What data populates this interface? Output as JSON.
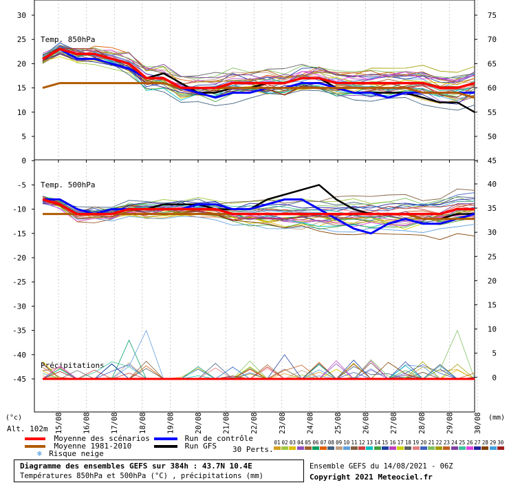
{
  "chart_data": {
    "type": "line",
    "title": "Diagramme des ensembles GEFS sur 384h : 43.7N 10.4E",
    "subtitle": "Températures 850hPa et 500hPa (°C) , précipitations (mm)",
    "left_unit": "(°c)",
    "right_unit": "(mm)",
    "altitude": "Alt. 102m",
    "left_ticks": [
      "30",
      "25",
      "20",
      "15",
      "10",
      "5",
      "0",
      "-5",
      "-10",
      "-15",
      "-20",
      "-25",
      "-30",
      "-35",
      "-40",
      "-45"
    ],
    "right_ticks_top": [
      "75",
      "70",
      "65",
      "60",
      "55",
      "50",
      "45"
    ],
    "right_ticks_bottom": [
      "40",
      "35",
      "30",
      "25",
      "20",
      "15",
      "10",
      "5",
      "0"
    ],
    "x_labels": [
      "15/08",
      "16/08",
      "17/08",
      "18/08",
      "19/08",
      "20/08",
      "21/08",
      "22/08",
      "23/08",
      "24/08",
      "25/08",
      "26/08",
      "27/08",
      "28/08",
      "29/08",
      "30/08"
    ],
    "panels": {
      "t850": {
        "label": "Temp. 850hPa",
        "ylim": [
          0,
          30
        ]
      },
      "t500": {
        "label": "Temp. 500hPa"
      },
      "precip": {
        "label": "Précipitations"
      }
    },
    "series": [
      {
        "name": "Moyenne des scénarios",
        "color": "#ff0000",
        "t850": [
          21,
          23,
          22,
          22,
          21,
          20,
          17,
          17,
          15,
          15,
          15,
          16,
          16,
          16,
          16,
          17,
          17,
          16,
          16,
          16,
          16,
          16,
          16,
          15,
          15,
          16
        ],
        "t500": [
          -8,
          -9,
          -11,
          -11,
          -11,
          -10,
          -10,
          -10,
          -10,
          -10,
          -10,
          -11,
          -11,
          -11,
          -11,
          -11,
          -11,
          -11,
          -11,
          -11,
          -11,
          -11,
          -11,
          -11,
          -10,
          -10
        ]
      },
      {
        "name": "Moyenne 1981-2010",
        "color": "#b05a00",
        "t850": [
          15,
          16,
          16,
          16,
          16,
          16,
          16,
          16,
          15,
          15,
          15,
          15,
          15,
          15,
          15,
          15,
          15,
          15,
          15,
          15,
          15,
          15,
          14,
          14,
          14,
          13
        ],
        "t500": [
          -11,
          -11,
          -11,
          -11,
          -11,
          -11,
          -11,
          -11,
          -11,
          -11,
          -11,
          -11,
          -11,
          -11,
          -11,
          -11,
          -11,
          -11,
          -11,
          -11,
          -11,
          -11,
          -12,
          -12,
          -12,
          -12
        ]
      },
      {
        "name": "Run de contrôle",
        "color": "#0000ff",
        "t850": [
          21,
          23,
          21,
          21,
          20,
          19,
          17,
          17,
          15,
          14,
          13,
          14,
          14,
          15,
          15,
          16,
          16,
          15,
          14,
          14,
          13,
          14,
          14,
          14,
          14,
          14
        ],
        "t500": [
          -8,
          -8,
          -10,
          -11,
          -10,
          -10,
          -10,
          -10,
          -10,
          -9,
          -9,
          -10,
          -10,
          -9,
          -8,
          -8,
          -10,
          -12,
          -14,
          -15,
          -13,
          -12,
          -13,
          -13,
          -12,
          -11
        ]
      },
      {
        "name": "Run GFS",
        "color": "#000000",
        "t850": [
          21,
          23,
          22,
          22,
          21,
          20,
          17,
          18,
          16,
          14,
          14,
          15,
          15,
          16,
          16,
          17,
          17,
          15,
          14,
          14,
          14,
          14,
          13,
          12,
          12,
          10
        ],
        "t500": [
          -8,
          -8,
          -10,
          -11,
          -11,
          -10,
          -10,
          -9,
          -9,
          -9,
          -10,
          -10,
          -10,
          -8,
          -7,
          -6,
          -5,
          -8,
          -10,
          -11,
          -11,
          -11,
          -12,
          -12,
          -11,
          -11
        ]
      }
    ],
    "legend": {
      "snow": "Risque neige",
      "perts_label": "30 Perts.",
      "perts_numbers": [
        "01",
        "02",
        "03",
        "04",
        "05",
        "06",
        "07",
        "08",
        "09",
        "10",
        "11",
        "12",
        "13",
        "14",
        "15",
        "16",
        "17",
        "18",
        "19",
        "20",
        "21",
        "22",
        "23",
        "24",
        "25",
        "26",
        "27",
        "28",
        "29",
        "30"
      ],
      "perts_colors": [
        "#d4a020",
        "#a0c840",
        "#e0c000",
        "#9050c0",
        "#a06030",
        "#00a060",
        "#e06000",
        "#406080",
        "#c0a080",
        "#60a0e0",
        "#806040",
        "#d04040",
        "#00c0c0",
        "#40a040",
        "#2040a0",
        "#c040c0",
        "#d0d000",
        "#606060",
        "#e08080",
        "#4060c0",
        "#80c060",
        "#a0a000",
        "#c06020",
        "#8040a0",
        "#40c0a0",
        "#e040e0",
        "#2020a0",
        "#804000",
        "#40a0e0",
        "#a02020"
      ]
    },
    "footer_right": {
      "run": "Ensemble GEFS du 14/08/2021 - 06Z",
      "copyright": "Copyright 2021 Meteociel.fr"
    },
    "grid": true
  }
}
